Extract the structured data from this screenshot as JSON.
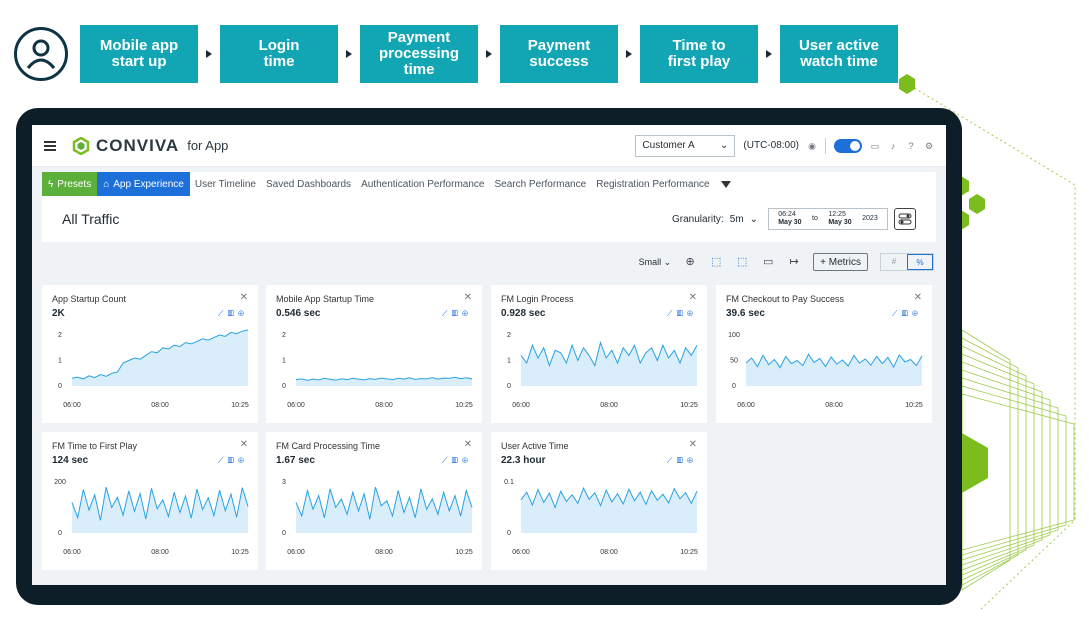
{
  "journey": {
    "steps": [
      {
        "label_l1": "Mobile app",
        "label_l2": "start up"
      },
      {
        "label_l1": "Login",
        "label_l2": "time"
      },
      {
        "label_l1": "Payment",
        "label_l2": "processing",
        "label_l3": "time"
      },
      {
        "label_l1": "Payment",
        "label_l2": "success"
      },
      {
        "label_l1": "Time to",
        "label_l2": "first play"
      },
      {
        "label_l1": "User active",
        "label_l2": "watch time"
      }
    ]
  },
  "header": {
    "brand": "CONVIVA",
    "brand_sub": "for App",
    "customer_select": "Customer A",
    "timezone": "(UTC-08:00)"
  },
  "tabs": [
    {
      "label": "Presets"
    },
    {
      "label": "App Experience"
    },
    {
      "label": "User Timeline"
    },
    {
      "label": "Saved Dashboards"
    },
    {
      "label": "Authentication Performance"
    },
    {
      "label": "Search Performance"
    },
    {
      "label": "Registration Performance"
    }
  ],
  "titlebar": {
    "title": "All Traffic",
    "granularity_label": "Granularity:",
    "granularity_value": "5m",
    "date_start_time": "06:24",
    "date_start_day": "May 30",
    "date_to": "to",
    "date_end_time": "12:25",
    "date_end_day": "May 30",
    "date_year": "2023"
  },
  "toolbar": {
    "size": "Small",
    "metrics_label": "+ Metrics",
    "hash_label": "#",
    "percent_label": "%"
  },
  "colors": {
    "accent_teal": "#12a5b4",
    "brand_blue": "#1d6fd9",
    "presets_green": "#5caf3a",
    "hex_green": "#7bbd1c",
    "chart_line": "#28a2e3"
  },
  "chart_data": [
    {
      "type": "area",
      "title": "App Startup Count",
      "value": "2K",
      "yticks": [
        "2",
        "1",
        "0"
      ],
      "ylim": [
        0,
        2
      ],
      "xticks": [
        "06:00",
        "08:00",
        "10:25"
      ],
      "trend": "rising",
      "values": [
        0.3,
        0.35,
        0.28,
        0.4,
        0.33,
        0.45,
        0.38,
        0.5,
        0.55,
        0.9,
        1.0,
        1.1,
        1.05,
        1.2,
        1.35,
        1.3,
        1.5,
        1.45,
        1.6,
        1.55,
        1.7,
        1.65,
        1.75,
        1.85,
        1.8,
        1.9,
        2.0,
        1.95,
        2.1,
        2.05,
        2.15,
        2.2
      ]
    },
    {
      "type": "area",
      "title": "Mobile App Startup Time",
      "value": "0.546 sec",
      "yticks": [
        "2",
        "1",
        "0"
      ],
      "ylim": [
        0,
        2
      ],
      "xticks": [
        "06:00",
        "08:00",
        "10:25"
      ],
      "trend": "flat",
      "values": [
        0.25,
        0.28,
        0.22,
        0.27,
        0.24,
        0.3,
        0.26,
        0.23,
        0.28,
        0.25,
        0.3,
        0.27,
        0.24,
        0.29,
        0.26,
        0.31,
        0.28,
        0.25,
        0.3,
        0.27,
        0.32,
        0.26,
        0.29,
        0.28,
        0.33,
        0.27,
        0.31,
        0.3,
        0.34,
        0.29,
        0.32,
        0.28
      ]
    },
    {
      "type": "area",
      "title": "FM Login Process",
      "value": "0.928 sec",
      "yticks": [
        "2",
        "1",
        "0"
      ],
      "ylim": [
        0,
        2
      ],
      "xticks": [
        "06:00",
        "08:00",
        "10:25"
      ],
      "trend": "noisy",
      "values": [
        1.2,
        0.9,
        1.6,
        1.1,
        1.5,
        0.8,
        1.4,
        1.3,
        0.9,
        1.6,
        1.0,
        1.5,
        1.2,
        0.8,
        1.7,
        1.1,
        1.4,
        0.9,
        1.5,
        1.2,
        1.6,
        0.9,
        1.3,
        1.5,
        1.0,
        1.6,
        1.1,
        1.4,
        0.9,
        1.5,
        1.2,
        1.6
      ]
    },
    {
      "type": "area",
      "title": "FM Checkout to Pay Success",
      "value": "39.6 sec",
      "yticks": [
        "100",
        "50",
        "0"
      ],
      "ylim": [
        0,
        100
      ],
      "xticks": [
        "06:00",
        "08:00",
        "10:25"
      ],
      "trend": "noisy",
      "values": [
        45,
        55,
        38,
        60,
        42,
        52,
        36,
        58,
        44,
        50,
        40,
        62,
        46,
        54,
        38,
        57,
        43,
        51,
        39,
        60,
        45,
        53,
        41,
        58,
        44,
        56,
        37,
        61,
        47,
        52,
        40,
        59
      ]
    },
    {
      "type": "area",
      "title": "FM Time to First Play",
      "value": "124 sec",
      "yticks": [
        "200",
        "0"
      ],
      "ylim": [
        0,
        200
      ],
      "xticks": [
        "06:00",
        "08:00",
        "10:25"
      ],
      "trend": "noisy",
      "values": [
        120,
        60,
        170,
        90,
        150,
        50,
        180,
        100,
        140,
        70,
        165,
        85,
        155,
        55,
        175,
        95,
        130,
        65,
        160,
        80,
        145,
        58,
        172,
        92,
        138,
        68,
        168,
        88,
        152,
        62,
        178,
        104
      ]
    },
    {
      "type": "area",
      "title": "FM Card Processing Time",
      "value": "1.67 sec",
      "yticks": [
        "3",
        "0"
      ],
      "ylim": [
        0,
        3
      ],
      "xticks": [
        "06:00",
        "08:00",
        "10:25"
      ],
      "trend": "noisy",
      "values": [
        1.8,
        1.0,
        2.5,
        1.4,
        2.2,
        0.9,
        2.6,
        1.5,
        2.0,
        1.1,
        2.4,
        1.3,
        2.3,
        0.8,
        2.7,
        1.6,
        1.9,
        1.0,
        2.5,
        1.2,
        2.1,
        0.9,
        2.6,
        1.4,
        2.0,
        1.1,
        2.4,
        1.3,
        2.2,
        1.0,
        2.5,
        1.5
      ]
    },
    {
      "type": "area",
      "title": "User Active Time",
      "value": "22.3 hour",
      "yticks": [
        "0.1",
        "0"
      ],
      "ylim": [
        0,
        0.1
      ],
      "xticks": [
        "06:00",
        "08:00",
        "10:25"
      ],
      "trend": "noisy",
      "values": [
        0.065,
        0.08,
        0.055,
        0.085,
        0.06,
        0.078,
        0.05,
        0.082,
        0.062,
        0.075,
        0.058,
        0.088,
        0.066,
        0.079,
        0.054,
        0.084,
        0.061,
        0.077,
        0.057,
        0.086,
        0.063,
        0.08,
        0.056,
        0.083,
        0.064,
        0.076,
        0.059,
        0.087,
        0.067,
        0.079,
        0.058,
        0.082
      ]
    }
  ]
}
